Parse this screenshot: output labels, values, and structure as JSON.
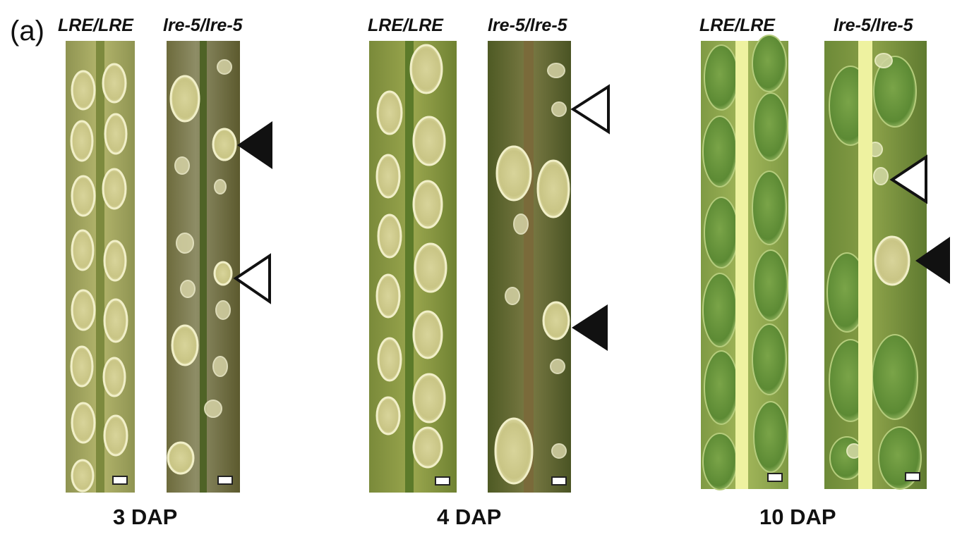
{
  "panel_label": "(a)",
  "genotype_labels": [
    "LRE/LRE",
    "lre-5/lre-5",
    "LRE/LRE",
    "lre-5/lre-5",
    "LRE/LRE",
    "lre-5/lre-5"
  ],
  "stage_labels": [
    "3 DAP",
    "4 DAP",
    "10 DAP"
  ],
  "colors": {
    "young_silique": "#a8a85a",
    "mutant_dark": "#5a5a2c",
    "mature_silique": "#8ea848",
    "ovule_pale": "#e6e4a8",
    "seed_green": "#6f9a3e",
    "septum": "#eef2a0"
  },
  "icons": [
    "filled-arrowhead-icon",
    "open-arrowhead-icon",
    "scale-bar-icon"
  ]
}
